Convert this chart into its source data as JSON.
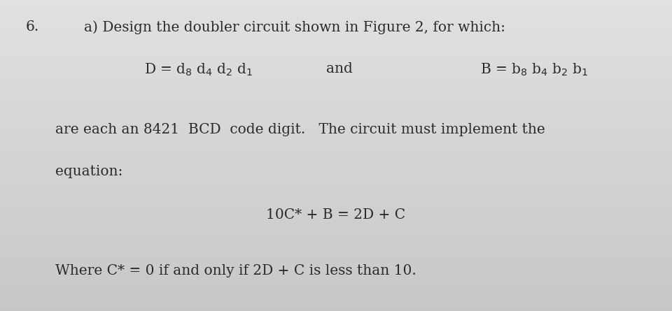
{
  "bg_color": "#e0e0e0",
  "text_color": "#2a2a2a",
  "line1_number": "6.",
  "line1_text": "a) Design the doubler circuit shown in Figure 2, for which:",
  "line2_left": "D = d$_8$ d$_4$ d$_2$ d$_1$",
  "line2_mid": "and",
  "line2_right": "B = b$_8$ b$_4$ b$_2$ b$_1$",
  "line3": "are each an 8421  BCD  code digit.   The circuit must implement the",
  "line4": "equation:",
  "line5": "10C* + B = 2D + C",
  "line6": "Where C* = 0 if and only if 2D + C is less than 10.",
  "font_size_main": 14.5
}
